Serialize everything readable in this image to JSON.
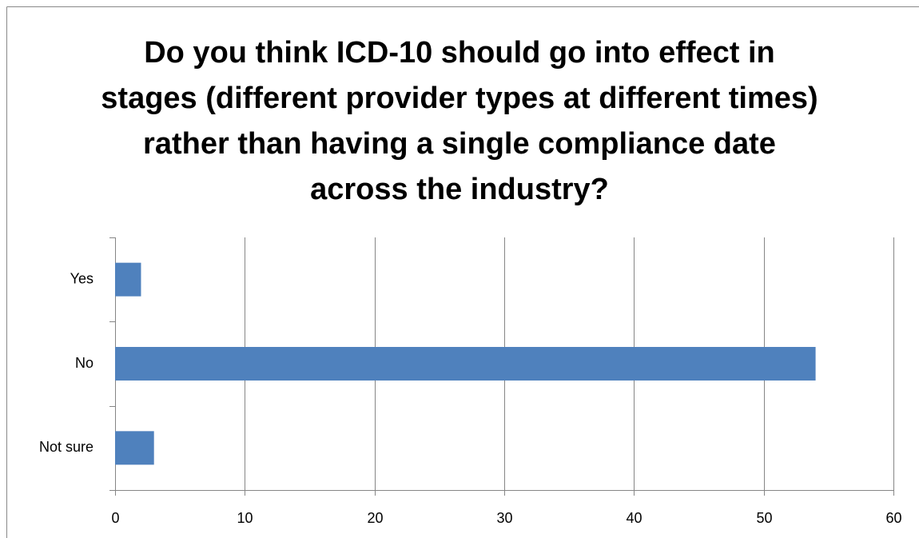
{
  "chart_data": {
    "type": "hbar",
    "title": "Do you think ICD-10 should go into effect in stages (different provider types at different times) rather than having a single compliance date across the industry?",
    "categories": [
      "Yes",
      "No",
      "Not sure"
    ],
    "values": [
      2,
      54,
      3
    ],
    "color": "#4f81bd",
    "xlim": [
      0,
      60
    ],
    "xticks": [
      0,
      10,
      20,
      30,
      40,
      50,
      60
    ],
    "grid": true
  }
}
